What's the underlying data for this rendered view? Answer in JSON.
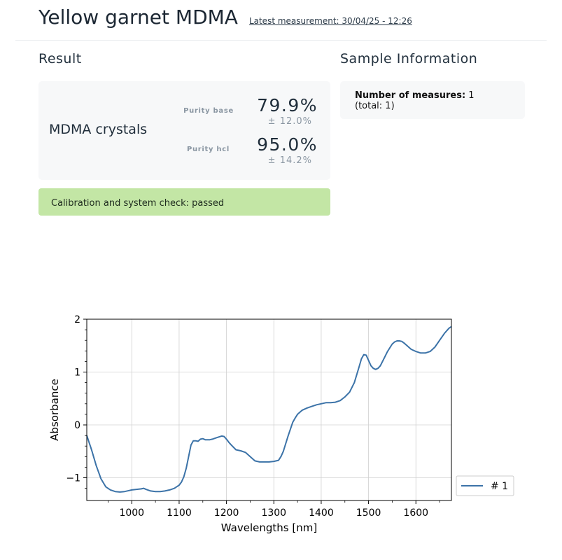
{
  "header": {
    "title": "Yellow garnet MDMA",
    "latest_measurement": "Latest measurement: 30/04/25 - 12:26"
  },
  "result": {
    "section_title": "Result",
    "product": "MDMA crystals",
    "purity_base": {
      "label": "Purity base",
      "value": "79.9%",
      "error": "± 12.0%"
    },
    "purity_hcl": {
      "label": "Purity hcl",
      "value": "95.0%",
      "error": "± 14.2%"
    },
    "check_status": "Calibration and system check: passed"
  },
  "sample_info": {
    "section_title": "Sample Information",
    "measures_label": "Number of measures:",
    "measures_value": "1",
    "total_text": "(total: 1)"
  },
  "colors": {
    "series": "#3c73a8",
    "check_bg": "#c3e6a5",
    "card_bg": "#f7f8f9"
  },
  "chart_data": {
    "type": "line",
    "xlabel": "Wavelengths [nm]",
    "ylabel": "Absorbance",
    "xlim": [
      905,
      1675
    ],
    "ylim": [
      -1.43,
      2.0
    ],
    "xticks": [
      1000,
      1100,
      1200,
      1300,
      1400,
      1500,
      1600
    ],
    "yticks": [
      -1,
      0,
      1,
      2
    ],
    "ytick_labels": [
      "−1",
      "0",
      "1",
      "2"
    ],
    "grid": true,
    "legend_position": "right",
    "series": [
      {
        "name": "# 1",
        "x": [
          905,
          915,
          925,
          935,
          945,
          955,
          965,
          975,
          985,
          995,
          1000,
          1010,
          1020,
          1025,
          1030,
          1040,
          1050,
          1060,
          1070,
          1080,
          1090,
          1100,
          1105,
          1110,
          1115,
          1120,
          1125,
          1130,
          1135,
          1140,
          1145,
          1150,
          1155,
          1160,
          1165,
          1170,
          1180,
          1190,
          1195,
          1200,
          1205,
          1210,
          1220,
          1230,
          1240,
          1250,
          1260,
          1270,
          1280,
          1290,
          1300,
          1310,
          1315,
          1320,
          1330,
          1340,
          1345,
          1350,
          1360,
          1370,
          1380,
          1390,
          1400,
          1410,
          1420,
          1430,
          1440,
          1450,
          1460,
          1470,
          1480,
          1485,
          1490,
          1495,
          1500,
          1505,
          1510,
          1515,
          1520,
          1525,
          1530,
          1540,
          1550,
          1555,
          1560,
          1565,
          1570,
          1575,
          1580,
          1590,
          1600,
          1610,
          1620,
          1630,
          1640,
          1650,
          1660,
          1670,
          1675
        ],
        "values": [
          -0.2,
          -0.47,
          -0.77,
          -1.02,
          -1.17,
          -1.23,
          -1.26,
          -1.27,
          -1.26,
          -1.24,
          -1.23,
          -1.22,
          -1.21,
          -1.2,
          -1.22,
          -1.25,
          -1.26,
          -1.26,
          -1.25,
          -1.23,
          -1.2,
          -1.14,
          -1.08,
          -0.98,
          -0.82,
          -0.6,
          -0.38,
          -0.3,
          -0.3,
          -0.31,
          -0.27,
          -0.26,
          -0.28,
          -0.28,
          -0.28,
          -0.27,
          -0.24,
          -0.21,
          -0.22,
          -0.27,
          -0.33,
          -0.38,
          -0.47,
          -0.49,
          -0.52,
          -0.6,
          -0.68,
          -0.7,
          -0.7,
          -0.7,
          -0.69,
          -0.67,
          -0.6,
          -0.5,
          -0.21,
          0.05,
          0.13,
          0.2,
          0.28,
          0.32,
          0.35,
          0.38,
          0.4,
          0.42,
          0.42,
          0.43,
          0.46,
          0.53,
          0.62,
          0.8,
          1.1,
          1.25,
          1.33,
          1.32,
          1.22,
          1.12,
          1.07,
          1.05,
          1.07,
          1.12,
          1.21,
          1.39,
          1.53,
          1.57,
          1.59,
          1.59,
          1.58,
          1.55,
          1.51,
          1.43,
          1.39,
          1.36,
          1.36,
          1.39,
          1.47,
          1.6,
          1.73,
          1.83,
          1.86
        ]
      }
    ]
  }
}
